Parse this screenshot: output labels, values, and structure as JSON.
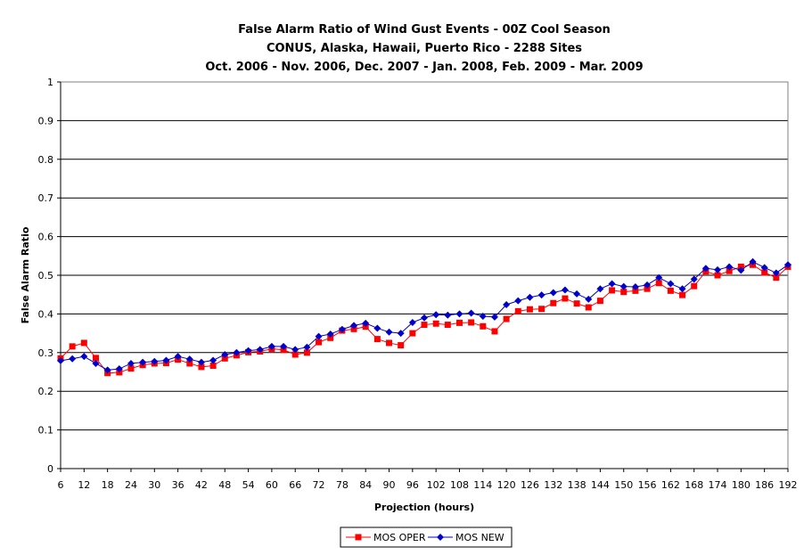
{
  "colors": {
    "oper": "#ff0000",
    "new": "#0000cc",
    "grid": "#000000",
    "background": "#ffffff"
  },
  "chart_data": {
    "type": "line",
    "title": [
      "False Alarm Ratio of Wind Gust Events - 00Z Cool Season",
      "CONUS, Alaska, Hawaii, Puerto Rico - 2288 Sites",
      "Oct. 2006 - Nov. 2006, Dec. 2007 - Jan. 2008, Feb. 2009 - Mar. 2009"
    ],
    "xlabel": "Projection (hours)",
    "ylabel": "False Alarm Ratio",
    "x_tick_labels": [
      "6",
      "12",
      "18",
      "24",
      "30",
      "36",
      "42",
      "48",
      "54",
      "60",
      "66",
      "72",
      "78",
      "84",
      "90",
      "96",
      "102",
      "108",
      "114",
      "120",
      "126",
      "132",
      "138",
      "144",
      "150",
      "156",
      "162",
      "168",
      "174",
      "180",
      "186",
      "192"
    ],
    "y_tick_labels": [
      "0",
      "0.1",
      "0.2",
      "0.3",
      "0.4",
      "0.5",
      "0.6",
      "0.7",
      "0.8",
      "0.9",
      "1"
    ],
    "xlim": [
      6,
      192
    ],
    "ylim": [
      0,
      1
    ],
    "grid": "horizontal",
    "legend_position": "bottom",
    "x": [
      6,
      9,
      12,
      15,
      18,
      21,
      24,
      27,
      30,
      33,
      36,
      39,
      42,
      45,
      48,
      51,
      54,
      57,
      60,
      63,
      66,
      69,
      72,
      75,
      78,
      81,
      84,
      87,
      90,
      93,
      96,
      99,
      102,
      105,
      108,
      111,
      114,
      117,
      120,
      123,
      126,
      129,
      132,
      135,
      138,
      141,
      144,
      147,
      150,
      153,
      156,
      159,
      162,
      165,
      168,
      171,
      174,
      177,
      180,
      183,
      186,
      189,
      192
    ],
    "series": [
      {
        "name": "MOS OPER",
        "marker": "square",
        "color": "#ff0000",
        "values": [
          0.285,
          0.316,
          0.325,
          0.286,
          0.247,
          0.249,
          0.259,
          0.268,
          0.272,
          0.273,
          0.282,
          0.272,
          0.263,
          0.266,
          0.285,
          0.293,
          0.301,
          0.303,
          0.31,
          0.307,
          0.295,
          0.3,
          0.327,
          0.338,
          0.357,
          0.361,
          0.367,
          0.335,
          0.325,
          0.319,
          0.35,
          0.372,
          0.375,
          0.372,
          0.377,
          0.378,
          0.368,
          0.355,
          0.387,
          0.407,
          0.412,
          0.413,
          0.428,
          0.44,
          0.427,
          0.417,
          0.434,
          0.461,
          0.457,
          0.46,
          0.465,
          0.48,
          0.46,
          0.449,
          0.472,
          0.51,
          0.5,
          0.511,
          0.522,
          0.527,
          0.507,
          0.494,
          0.522
        ]
      },
      {
        "name": "MOS NEW",
        "marker": "diamond",
        "color": "#0000cc",
        "values": [
          0.279,
          0.284,
          0.29,
          0.272,
          0.255,
          0.258,
          0.272,
          0.275,
          0.277,
          0.28,
          0.29,
          0.283,
          0.275,
          0.28,
          0.295,
          0.3,
          0.305,
          0.308,
          0.316,
          0.316,
          0.308,
          0.314,
          0.342,
          0.348,
          0.36,
          0.37,
          0.376,
          0.363,
          0.353,
          0.35,
          0.378,
          0.39,
          0.398,
          0.397,
          0.4,
          0.402,
          0.394,
          0.392,
          0.424,
          0.434,
          0.443,
          0.449,
          0.455,
          0.462,
          0.452,
          0.438,
          0.465,
          0.478,
          0.471,
          0.47,
          0.475,
          0.494,
          0.478,
          0.465,
          0.49,
          0.518,
          0.514,
          0.522,
          0.513,
          0.535,
          0.52,
          0.506,
          0.527
        ]
      }
    ]
  }
}
